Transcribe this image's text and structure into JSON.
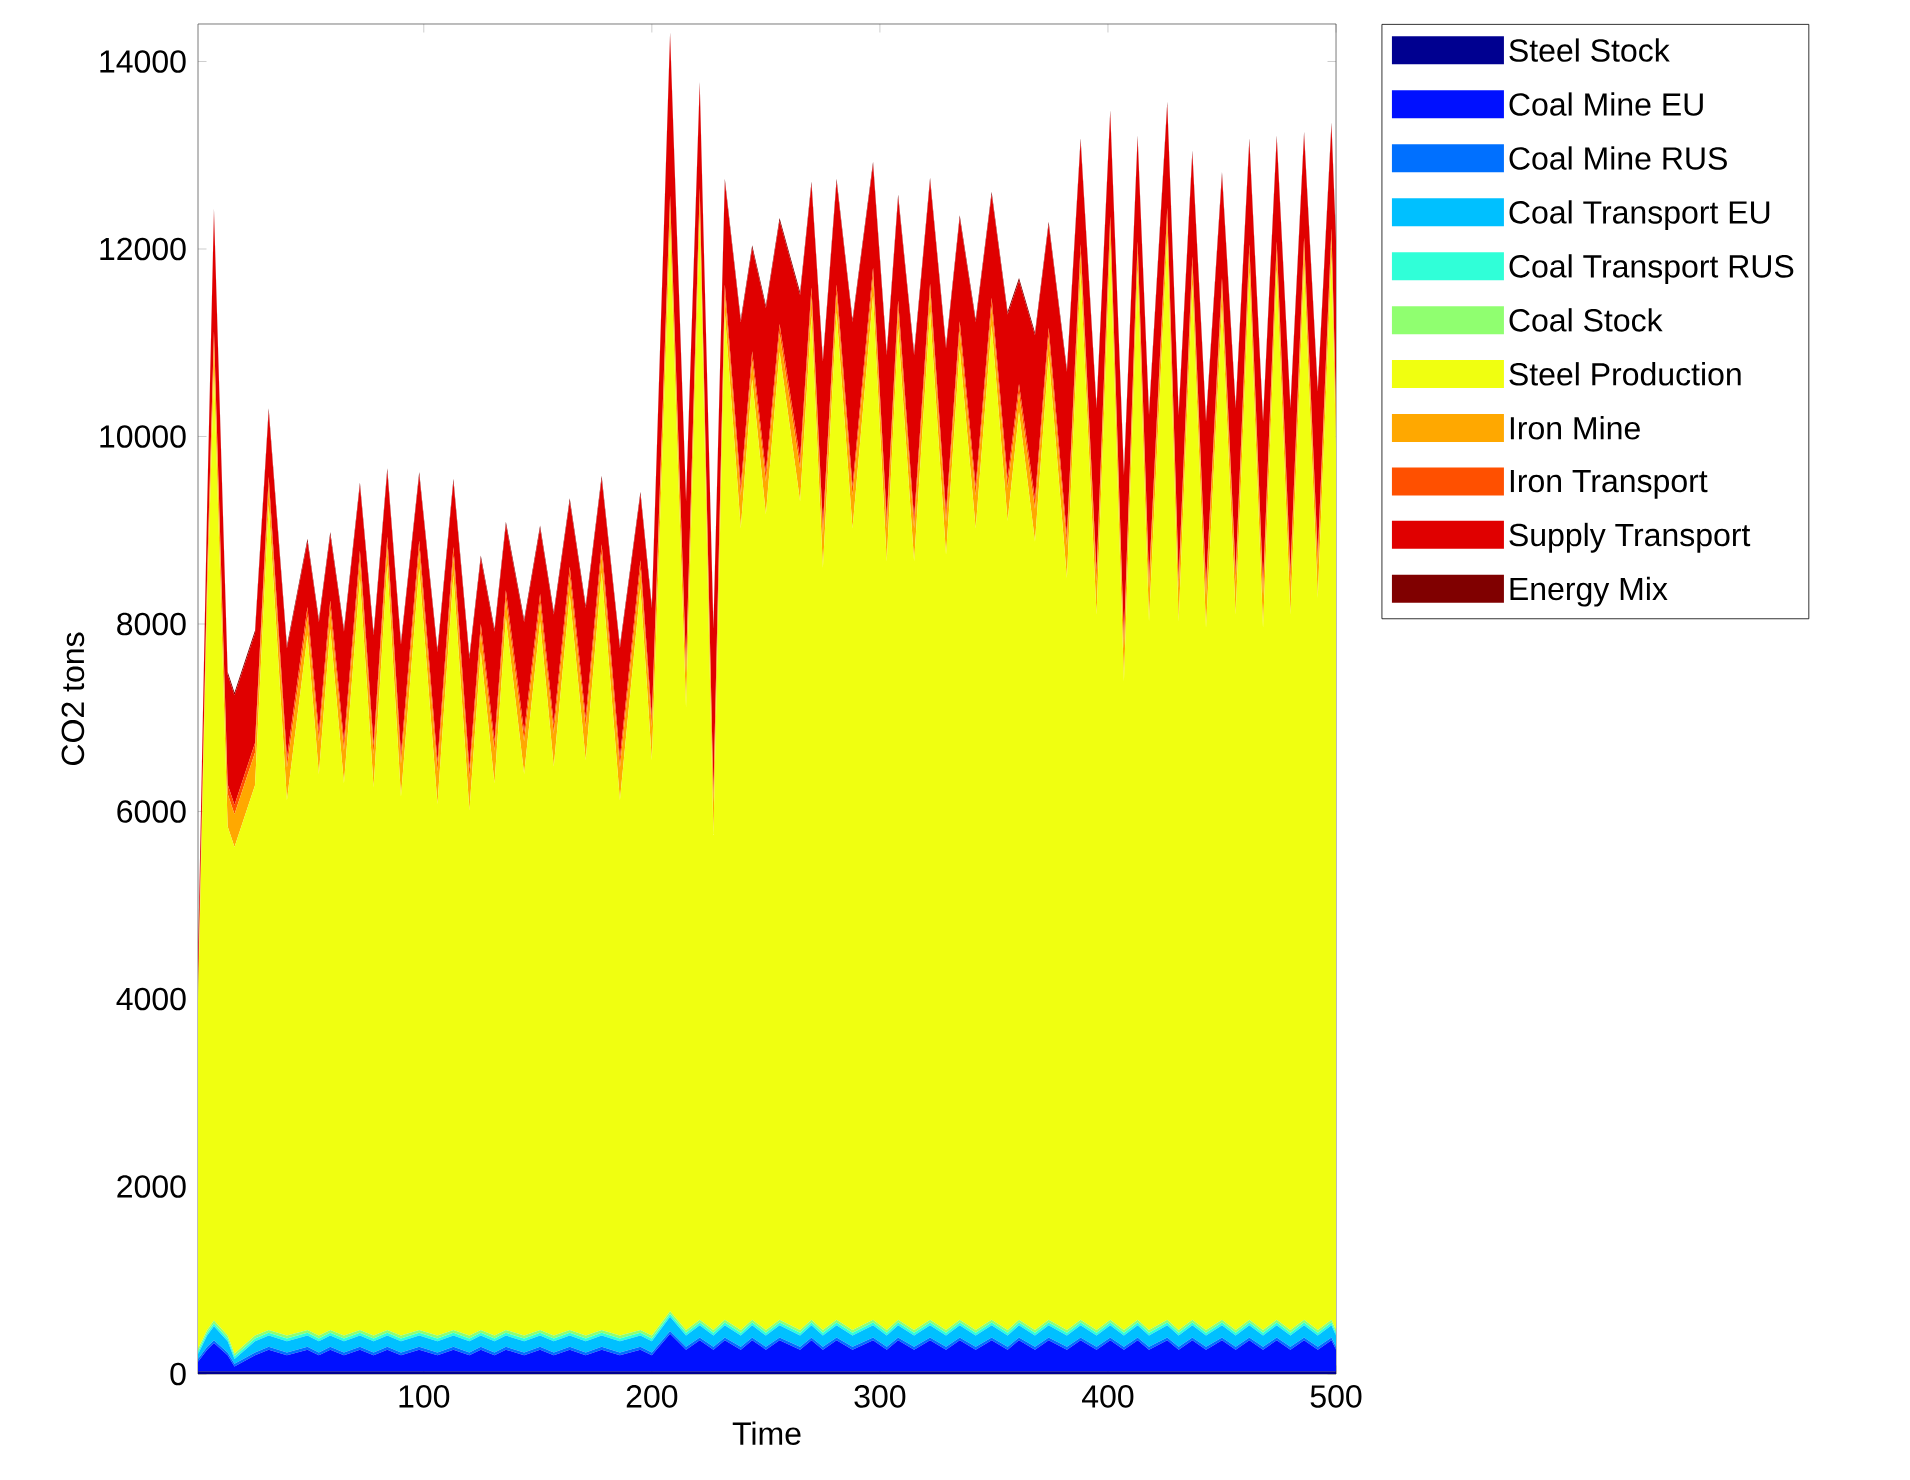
{
  "chart_data": {
    "type": "area",
    "stacked": true,
    "xlabel": "Time",
    "ylabel": "CO2 tons",
    "x": [
      1,
      5,
      8,
      14,
      17,
      26,
      32,
      40,
      49,
      54,
      59,
      65,
      72,
      78,
      84,
      90,
      98,
      106,
      113,
      120,
      125,
      131,
      136,
      144,
      151,
      157,
      164,
      171,
      178,
      186,
      195,
      200,
      208,
      215,
      221,
      227,
      232,
      239,
      244,
      250,
      256,
      265,
      270,
      275,
      281,
      288,
      297,
      303,
      308,
      315,
      322,
      329,
      335,
      342,
      349,
      356,
      361,
      368,
      374,
      382,
      388,
      395,
      401,
      407,
      413,
      418,
      426,
      431,
      437,
      443,
      450,
      456,
      462,
      468,
      474,
      480,
      486,
      492,
      498,
      500
    ],
    "xlim": [
      1,
      500
    ],
    "xticks": [
      100,
      200,
      300,
      400,
      500
    ],
    "ylim": [
      0,
      14400
    ],
    "yticks": [
      0,
      2000,
      4000,
      6000,
      8000,
      10000,
      12000,
      14000
    ],
    "legend": "top right",
    "series": [
      {
        "name": "Steel Stock",
        "color": "#000090",
        "values": [
          30,
          30,
          30,
          30,
          30,
          30,
          30,
          30,
          30,
          30,
          30,
          30,
          30,
          30,
          30,
          30,
          30,
          30,
          30,
          30,
          30,
          30,
          30,
          30,
          30,
          30,
          30,
          30,
          30,
          30,
          30,
          30,
          30,
          30,
          30,
          30,
          30,
          30,
          30,
          30,
          30,
          30,
          30,
          30,
          30,
          30,
          30,
          30,
          30,
          30,
          30,
          30,
          30,
          30,
          30,
          30,
          30,
          30,
          30,
          30,
          30,
          30,
          30,
          30,
          30,
          30,
          30,
          30,
          30,
          30,
          30,
          30,
          30,
          30,
          30,
          30,
          30,
          30,
          30,
          30
        ]
      },
      {
        "name": "Coal Mine EU",
        "color": "#0010ff",
        "values": [
          100,
          230,
          300,
          170,
          50,
          170,
          230,
          170,
          230,
          170,
          230,
          170,
          230,
          170,
          230,
          170,
          230,
          170,
          230,
          170,
          230,
          170,
          230,
          170,
          230,
          170,
          230,
          170,
          230,
          170,
          230,
          170,
          400,
          230,
          330,
          230,
          330,
          230,
          330,
          230,
          330,
          230,
          330,
          230,
          330,
          230,
          330,
          230,
          330,
          230,
          330,
          230,
          330,
          230,
          330,
          230,
          330,
          230,
          330,
          230,
          330,
          230,
          330,
          230,
          330,
          230,
          330,
          230,
          330,
          230,
          330,
          230,
          330,
          230,
          330,
          230,
          330,
          230,
          330,
          230
        ]
      },
      {
        "name": "Coal Mine RUS",
        "color": "#0070ff",
        "values": [
          30,
          30,
          30,
          30,
          30,
          30,
          30,
          30,
          30,
          30,
          30,
          30,
          30,
          30,
          30,
          30,
          30,
          30,
          30,
          30,
          30,
          30,
          30,
          30,
          30,
          30,
          30,
          30,
          30,
          30,
          30,
          30,
          30,
          30,
          30,
          30,
          30,
          30,
          30,
          30,
          30,
          30,
          30,
          30,
          30,
          30,
          30,
          30,
          30,
          30,
          30,
          30,
          30,
          30,
          30,
          30,
          30,
          30,
          30,
          30,
          30,
          30,
          30,
          30,
          30,
          30,
          30,
          30,
          30,
          30,
          30,
          30,
          30,
          30,
          30,
          30,
          30,
          30,
          30,
          30
        ]
      },
      {
        "name": "Coal Transport EU",
        "color": "#00c0ff",
        "values": [
          50,
          120,
          150,
          120,
          50,
          120,
          120,
          120,
          120,
          120,
          120,
          120,
          120,
          120,
          120,
          120,
          120,
          120,
          120,
          120,
          120,
          120,
          120,
          120,
          120,
          120,
          120,
          120,
          120,
          120,
          120,
          120,
          150,
          120,
          130,
          120,
          130,
          120,
          130,
          120,
          130,
          120,
          130,
          120,
          130,
          120,
          130,
          120,
          130,
          120,
          130,
          120,
          130,
          120,
          130,
          120,
          130,
          120,
          130,
          120,
          130,
          120,
          130,
          120,
          130,
          120,
          130,
          120,
          130,
          120,
          130,
          120,
          130,
          120,
          130,
          120,
          130,
          120,
          130,
          120
        ]
      },
      {
        "name": "Coal Transport RUS",
        "color": "#30ffd8",
        "values": [
          30,
          30,
          30,
          30,
          30,
          30,
          30,
          30,
          30,
          30,
          30,
          30,
          30,
          30,
          30,
          30,
          30,
          30,
          30,
          30,
          30,
          30,
          30,
          30,
          30,
          30,
          30,
          30,
          30,
          30,
          30,
          30,
          30,
          30,
          30,
          30,
          30,
          30,
          30,
          30,
          30,
          30,
          30,
          30,
          30,
          30,
          30,
          30,
          30,
          30,
          30,
          30,
          30,
          30,
          30,
          30,
          30,
          30,
          30,
          30,
          30,
          30,
          30,
          30,
          30,
          30,
          30,
          30,
          30,
          30,
          30,
          30,
          30,
          30,
          30,
          30,
          30,
          30,
          30,
          30
        ]
      },
      {
        "name": "Coal Stock",
        "color": "#90ff70",
        "values": [
          30,
          30,
          30,
          30,
          30,
          30,
          30,
          30,
          30,
          30,
          30,
          30,
          30,
          30,
          30,
          30,
          30,
          30,
          30,
          30,
          30,
          30,
          30,
          30,
          30,
          30,
          30,
          30,
          30,
          30,
          30,
          30,
          30,
          30,
          30,
          30,
          30,
          30,
          30,
          30,
          30,
          30,
          30,
          30,
          30,
          30,
          30,
          30,
          30,
          30,
          30,
          30,
          30,
          30,
          30,
          30,
          30,
          30,
          30,
          30,
          30,
          30,
          30,
          30,
          30,
          30,
          30,
          30,
          30,
          30,
          30,
          30,
          30,
          30,
          30,
          30,
          30,
          30,
          30,
          30
        ]
      },
      {
        "name": "Steel Production",
        "color": "#f0ff10",
        "values": [
          3700,
          7760,
          10150,
          5430,
          5400,
          5870,
          8800,
          5710,
          7410,
          5990,
          7480,
          5890,
          8010,
          5850,
          8160,
          5750,
          8120,
          5670,
          8050,
          5600,
          7230,
          5890,
          7590,
          5990,
          7550,
          6070,
          7840,
          6140,
          8080,
          5710,
          7910,
          6140,
          11550,
          6640,
          11770,
          5280,
          10740,
          8550,
          10030,
          8700,
          10320,
          8840,
          10710,
          8130,
          10740,
          8550,
          10920,
          8200,
          10570,
          8200,
          10750,
          8270,
          10350,
          8550,
          10600,
          8630,
          9680,
          8410,
          10280,
          8020,
          11170,
          7630,
          11470,
          6920,
          11200,
          7560,
          11560,
          7560,
          11040,
          7490,
          10810,
          7630,
          11170,
          7490,
          11200,
          7630,
          11240,
          7810,
          11340,
          9410
        ]
      },
      {
        "name": "Iron Mine",
        "color": "#ffa800",
        "values": [
          100,
          200,
          300,
          350,
          350,
          350,
          200,
          350,
          200,
          350,
          200,
          350,
          200,
          350,
          200,
          350,
          200,
          350,
          200,
          350,
          200,
          350,
          200,
          350,
          200,
          350,
          200,
          350,
          200,
          350,
          200,
          350,
          250,
          350,
          200,
          350,
          200,
          350,
          200,
          350,
          200,
          350,
          200,
          350,
          200,
          350,
          200,
          350,
          200,
          350,
          200,
          350,
          200,
          350,
          200,
          350,
          200,
          350,
          200,
          350,
          200,
          350,
          200,
          350,
          200,
          350,
          200,
          350,
          200,
          350,
          200,
          350,
          200,
          350,
          200,
          350,
          200,
          350,
          200,
          350
        ]
      },
      {
        "name": "Iron Transport",
        "color": "#ff5000",
        "values": [
          50,
          100,
          100,
          100,
          100,
          100,
          100,
          100,
          100,
          100,
          100,
          100,
          100,
          100,
          100,
          100,
          100,
          100,
          100,
          100,
          100,
          100,
          100,
          100,
          100,
          100,
          100,
          100,
          100,
          100,
          100,
          100,
          100,
          100,
          100,
          100,
          100,
          100,
          100,
          100,
          100,
          100,
          100,
          100,
          100,
          100,
          100,
          100,
          100,
          100,
          100,
          100,
          100,
          100,
          100,
          100,
          100,
          100,
          100,
          100,
          100,
          100,
          100,
          100,
          100,
          100,
          100,
          100,
          100,
          100,
          100,
          100,
          100,
          100,
          100,
          100,
          100,
          100,
          100,
          100
        ]
      },
      {
        "name": "Supply Transport",
        "color": "#e00000",
        "values": [
          300,
          700,
          1280,
          1170,
          1170,
          1170,
          700,
          1170,
          700,
          1170,
          700,
          1170,
          700,
          1170,
          700,
          1170,
          700,
          1170,
          700,
          1170,
          700,
          1170,
          700,
          1170,
          700,
          1170,
          700,
          1170,
          700,
          1170,
          700,
          1170,
          1710,
          1750,
          1100,
          1750,
          1100,
          1750,
          1100,
          1750,
          1100,
          1750,
          1100,
          1750,
          1100,
          1750,
          1100,
          1750,
          1100,
          1750,
          1100,
          1750,
          1100,
          1750,
          1100,
          1750,
          1100,
          1750,
          1100,
          1750,
          1100,
          1750,
          1100,
          1750,
          1100,
          1750,
          1100,
          1750,
          1100,
          1750,
          1100,
          1750,
          1100,
          1750,
          1100,
          1750,
          1100,
          1750,
          1100,
          1750
        ]
      },
      {
        "name": "Energy Mix",
        "color": "#800000",
        "values": [
          30,
          30,
          30,
          30,
          30,
          30,
          30,
          30,
          30,
          30,
          30,
          30,
          30,
          30,
          30,
          30,
          30,
          30,
          30,
          30,
          30,
          30,
          30,
          30,
          30,
          30,
          30,
          30,
          30,
          30,
          30,
          30,
          30,
          30,
          30,
          30,
          30,
          30,
          30,
          30,
          30,
          30,
          30,
          30,
          30,
          30,
          30,
          30,
          30,
          30,
          30,
          30,
          30,
          30,
          30,
          30,
          30,
          30,
          30,
          30,
          30,
          30,
          30,
          30,
          30,
          30,
          30,
          30,
          30,
          30,
          30,
          30,
          30,
          30,
          30,
          30,
          30,
          30,
          30,
          30
        ]
      }
    ]
  }
}
